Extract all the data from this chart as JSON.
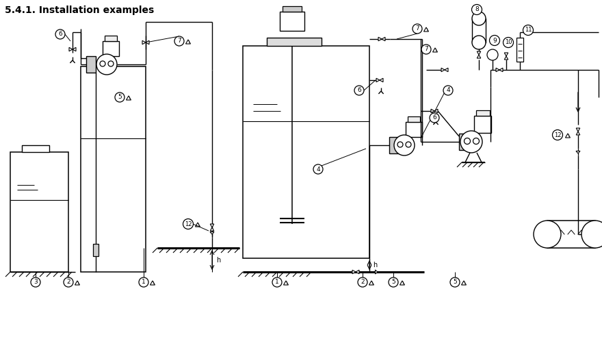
{
  "title": "5.4.1. Installation examples",
  "title_fontsize": 10,
  "title_fontweight": "bold",
  "bg_color": "#ffffff",
  "line_color": "#000000",
  "fig_width": 8.8,
  "fig_height": 4.92,
  "dpi": 100
}
